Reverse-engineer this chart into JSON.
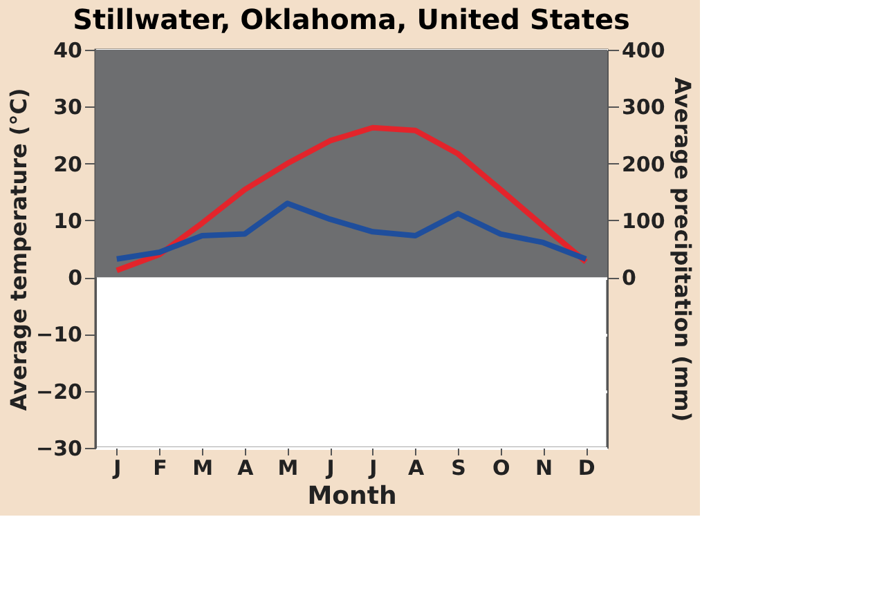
{
  "chart_data": {
    "type": "line",
    "title": "Stillwater, Oklahoma, United States",
    "xlabel": "Month",
    "ylabel": "Average temperature (°C)",
    "y2label": "Average precipitation (mm)",
    "categories": [
      "J",
      "F",
      "M",
      "A",
      "M",
      "J",
      "J",
      "A",
      "S",
      "O",
      "N",
      "D"
    ],
    "series": [
      {
        "color": "#e3242b",
        "values": [
          1.2,
          4,
          9.5,
          15.4,
          20,
          24,
          26.3,
          25.8,
          21.7,
          15.4,
          9,
          2.7
        ]
      },
      {
        "color": "#1f4e9c",
        "axis": "y2",
        "values": [
          32,
          44,
          73,
          76,
          130,
          102,
          80,
          73,
          112,
          76,
          61,
          32
        ]
      }
    ],
    "ylim": [
      -30,
      40
    ],
    "yticks": [
      -30,
      -20,
      -10,
      0,
      10,
      20,
      30,
      40
    ],
    "y2lim": [
      -300,
      400
    ],
    "y2ticks": [
      0,
      100,
      200,
      300,
      400
    ],
    "bands": [
      {
        "axis": "y",
        "from": 0,
        "to": 40,
        "color": "#6d6e70"
      }
    ],
    "grid": "y",
    "marker": "none",
    "line_style": "solid"
  }
}
